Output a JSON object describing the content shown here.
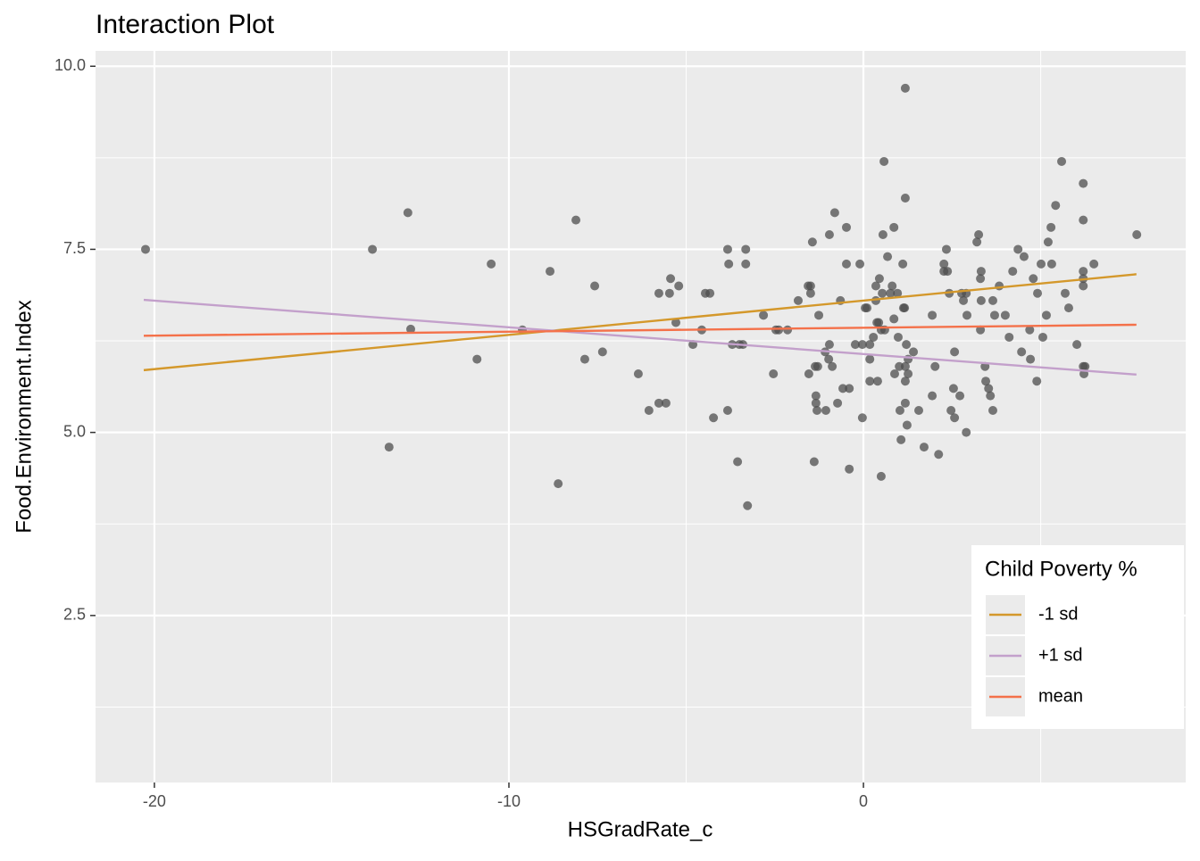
{
  "chart_data": {
    "type": "scatter",
    "title": "Interaction Plot",
    "x_label": "HSGradRate_c",
    "y_label": "Food.Environment.Index",
    "xlim": [
      -21.66,
      9.09
    ],
    "ylim": [
      0.22,
      10.21
    ],
    "xticks": [
      -20,
      -10,
      0
    ],
    "yticks": [
      {
        "value": 2.5,
        "label": "2.5"
      },
      {
        "value": 5,
        "label": "5.0"
      },
      {
        "value": 7.5,
        "label": "7.5"
      },
      {
        "value": 10,
        "label": "10.0"
      }
    ],
    "x_minor_ticks": [
      -15,
      -5,
      5
    ],
    "y_minor_ticks": [
      1.25,
      3.75,
      6.25,
      8.75
    ],
    "grid": true,
    "points": {
      "color": "#4d4d4d",
      "x": [
        -20.25,
        -13.85,
        -12.85,
        -12.77,
        -13.38,
        -10.5,
        -10.9,
        -9.62,
        -8.84,
        -8.61,
        -8.11,
        -7.86,
        -7.58,
        -7.36,
        -6.35,
        -6.05,
        -5.77,
        -5.57,
        -5.77,
        -5.47,
        -5.44,
        -5.29,
        -5.21,
        -4.81,
        -4.46,
        -4.33,
        -4.56,
        -4.23,
        -3.83,
        -3.8,
        -3.83,
        -3.7,
        -3.55,
        -3.5,
        -3.4,
        -3.32,
        -3.32,
        -3.27,
        -2.82,
        -2.54,
        -2.47,
        -2.39,
        -2.14,
        -1.84,
        -1.56,
        -1.49,
        -1.49,
        -1.44,
        -1.54,
        -1.39,
        -1.34,
        -1.34,
        -1.31,
        -1.36,
        -1.29,
        -1.26,
        -1.08,
        -1.06,
        -0.98,
        -0.96,
        -0.96,
        -0.88,
        -0.81,
        -0.73,
        -0.65,
        -0.58,
        -0.48,
        -0.48,
        -0.4,
        -0.4,
        -0.23,
        -0.1,
        -0.03,
        -0.03,
        0.05,
        0.1,
        0.18,
        0.18,
        0.18,
        0.28,
        0.35,
        0.35,
        0.38,
        0.43,
        0.4,
        0.45,
        0.5,
        0.5,
        0.53,
        0.55,
        0.58,
        0.6,
        0.68,
        0.76,
        0.81,
        0.86,
        0.86,
        0.88,
        0.96,
        0.98,
        1.01,
        1.03,
        1.06,
        1.11,
        1.13,
        1.18,
        1.18,
        1.16,
        1.18,
        1.18,
        1.18,
        1.21,
        1.23,
        1.26,
        1.26,
        1.41,
        1.56,
        1.71,
        1.94,
        1.94,
        2.02,
        2.12,
        2.27,
        2.27,
        2.34,
        2.37,
        2.42,
        2.47,
        2.54,
        2.57,
        2.57,
        2.72,
        2.77,
        2.82,
        2.9,
        2.9,
        2.92,
        3.2,
        3.25,
        3.3,
        3.32,
        3.3,
        3.32,
        3.43,
        3.45,
        3.53,
        3.58,
        3.65,
        3.65,
        3.7,
        3.83,
        4.0,
        4.11,
        4.21,
        4.36,
        4.46,
        4.53,
        4.69,
        4.71,
        4.79,
        4.89,
        4.91,
        5.01,
        5.06,
        5.16,
        5.21,
        5.29,
        5.31,
        5.42,
        5.59,
        5.69,
        5.79,
        6.02,
        6.2,
        6.2,
        6.2,
        6.2,
        6.2,
        6.2,
        6.22,
        6.25,
        6.5,
        7.71
      ],
      "y": [
        7.5,
        7.5,
        8.0,
        6.41,
        4.8,
        7.3,
        6.0,
        6.4,
        7.2,
        4.3,
        7.9,
        6.0,
        7.0,
        6.1,
        5.8,
        5.3,
        5.4,
        5.4,
        6.9,
        6.9,
        7.1,
        6.5,
        7.0,
        6.2,
        6.9,
        6.9,
        6.4,
        5.2,
        7.5,
        7.3,
        5.3,
        6.2,
        4.6,
        6.2,
        6.2,
        7.5,
        7.3,
        4.0,
        6.6,
        5.8,
        6.4,
        6.4,
        6.4,
        6.8,
        7.0,
        7.0,
        6.9,
        7.6,
        5.8,
        4.6,
        5.5,
        5.4,
        5.3,
        5.9,
        5.9,
        6.6,
        6.1,
        5.3,
        6.0,
        6.2,
        7.7,
        5.9,
        8.0,
        5.4,
        6.8,
        5.6,
        7.8,
        7.3,
        4.5,
        5.6,
        6.2,
        7.3,
        5.2,
        6.2,
        6.7,
        6.7,
        6.2,
        6.0,
        5.7,
        6.3,
        7.0,
        6.8,
        6.5,
        6.5,
        5.7,
        7.1,
        4.4,
        6.4,
        6.9,
        7.7,
        8.7,
        6.4,
        7.4,
        6.9,
        7.0,
        7.8,
        6.55,
        5.8,
        6.9,
        6.3,
        5.9,
        5.3,
        4.9,
        7.3,
        6.7,
        9.7,
        8.2,
        6.7,
        5.9,
        5.7,
        5.4,
        6.2,
        5.1,
        6.0,
        5.8,
        6.1,
        5.3,
        4.8,
        6.6,
        5.5,
        5.9,
        4.7,
        7.3,
        7.2,
        7.5,
        7.2,
        6.9,
        5.3,
        5.6,
        6.1,
        5.2,
        5.5,
        6.9,
        6.8,
        5.0,
        6.9,
        6.6,
        7.6,
        7.7,
        6.4,
        7.2,
        7.1,
        6.8,
        5.9,
        5.7,
        5.6,
        5.5,
        5.3,
        6.8,
        6.6,
        7.0,
        6.6,
        6.3,
        7.2,
        7.5,
        6.1,
        7.4,
        6.4,
        6.0,
        7.1,
        5.7,
        6.9,
        7.3,
        6.3,
        6.6,
        7.6,
        7.8,
        7.3,
        8.1,
        8.7,
        6.9,
        6.7,
        6.2,
        8.4,
        7.9,
        7.2,
        7.1,
        7.0,
        5.9,
        5.8,
        5.9,
        7.3,
        7.7
      ]
    },
    "legend_title": "Child Poverty %",
    "legend_position": "bottom-right",
    "series": [
      {
        "name": "-1 sd",
        "color": "#d4982b",
        "x": [
          -20.3,
          7.7
        ],
        "values": [
          5.85,
          7.16
        ]
      },
      {
        "name": "+1 sd",
        "color": "#c3a0cb",
        "x": [
          -20.3,
          7.7
        ],
        "values": [
          6.81,
          5.79
        ]
      },
      {
        "name": "mean",
        "color": "#f4714a",
        "x": [
          -20.3,
          7.7
        ],
        "values": [
          6.32,
          6.47
        ]
      }
    ]
  }
}
